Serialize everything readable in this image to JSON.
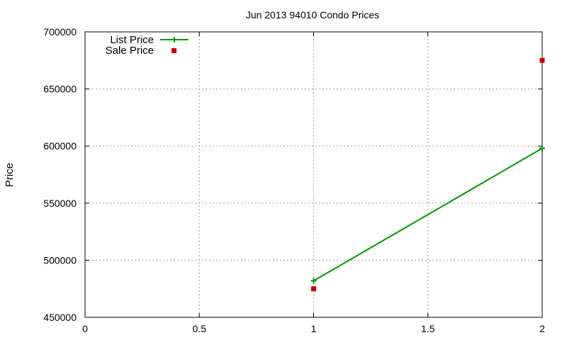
{
  "chart_data": {
    "type": "line",
    "title": "Jun 2013 94010 Condo Prices",
    "xlabel": "",
    "ylabel": "Price",
    "xlim": [
      0,
      2
    ],
    "ylim": [
      450000,
      700000
    ],
    "xticks": [
      0,
      0.5,
      1,
      1.5,
      2
    ],
    "xtick_labels": [
      "0",
      "0.5",
      "1",
      "1.5",
      "2"
    ],
    "yticks": [
      450000,
      500000,
      550000,
      600000,
      650000,
      700000
    ],
    "ytick_labels": [
      "450000",
      "500000",
      "550000",
      "600000",
      "650000",
      "700000"
    ],
    "grid": true,
    "legend_position": "top-left",
    "series": [
      {
        "name": "List Price",
        "style": "line-with-plus-markers",
        "color": "#009900",
        "points": [
          {
            "x": 1,
            "y": 482000
          },
          {
            "x": 2,
            "y": 598000
          }
        ]
      },
      {
        "name": "Sale Price",
        "style": "square-markers",
        "color": "#cc0000",
        "points": [
          {
            "x": 1,
            "y": 475000
          },
          {
            "x": 2,
            "y": 675000
          }
        ]
      }
    ]
  }
}
